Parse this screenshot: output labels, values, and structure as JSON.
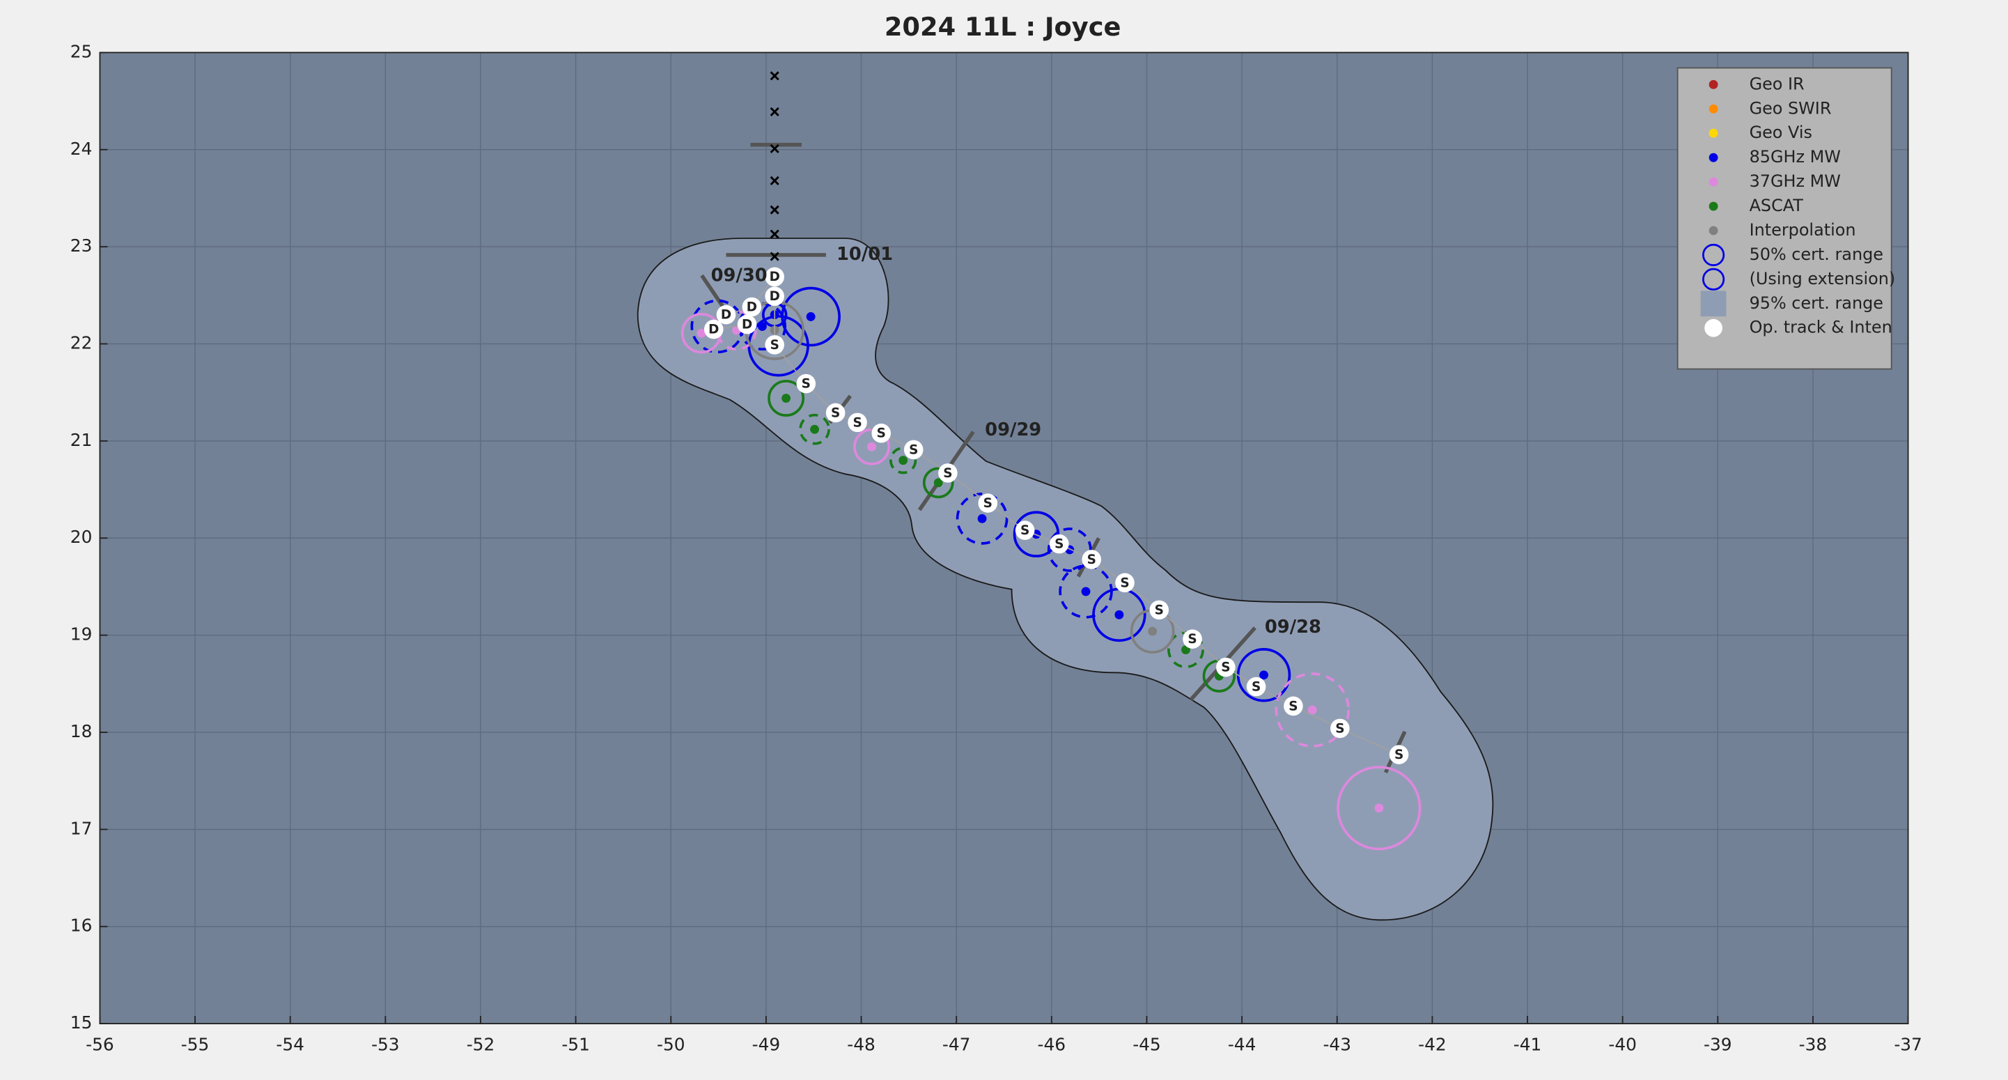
{
  "chart_data": {
    "type": "scatter",
    "title": "2024  11L :  Joyce",
    "xlim": [
      -56,
      -37
    ],
    "ylim": [
      15,
      25
    ],
    "xticks": [
      -56,
      -55,
      -54,
      -53,
      -52,
      -51,
      -50,
      -49,
      -48,
      -47,
      -46,
      -45,
      -44,
      -43,
      -42,
      -41,
      -40,
      -39,
      -38,
      -37
    ],
    "yticks": [
      15,
      16,
      17,
      18,
      19,
      20,
      21,
      22,
      23,
      24,
      25
    ],
    "grid": true,
    "legend": "upper right",
    "series": [
      {
        "name": "Geo IR",
        "color": "#b22222",
        "x": [],
        "y": [],
        "r": [],
        "dashed": []
      },
      {
        "name": "Geo SWIR",
        "color": "#ff8c00",
        "x": [],
        "y": [],
        "r": [],
        "dashed": []
      },
      {
        "name": "Geo Vis",
        "color": "#ffd700",
        "x": [],
        "y": [],
        "r": [],
        "dashed": []
      },
      {
        "name": "85GHz MW",
        "color": "#0000e6",
        "x": [
          -48.53,
          -48.87,
          -48.91,
          -49.04,
          -49.51,
          -46.73,
          -46.16,
          -45.81,
          -45.64,
          -45.29,
          -43.77
        ],
        "y": [
          22.28,
          21.98,
          22.3,
          22.18,
          22.18,
          20.2,
          20.04,
          19.88,
          19.45,
          19.21,
          18.59
        ],
        "r": [
          0.3,
          0.31,
          0.12,
          0.24,
          0.27,
          0.26,
          0.23,
          0.22,
          0.27,
          0.27,
          0.27
        ],
        "dashed": [
          false,
          false,
          false,
          true,
          true,
          true,
          false,
          true,
          true,
          false,
          false
        ]
      },
      {
        "name": "37GHz MW",
        "color": "#dd88dd",
        "x": [
          -42.56,
          -43.26,
          -47.89,
          -49.68,
          -49.31
        ],
        "y": [
          17.22,
          18.23,
          20.94,
          22.11,
          22.14
        ],
        "r": [
          0.43,
          0.38,
          0.18,
          0.2,
          0.2
        ],
        "dashed": [
          false,
          true,
          false,
          false,
          true
        ]
      },
      {
        "name": "ASCAT",
        "color": "#1a7a1a",
        "x": [
          -48.79,
          -48.49,
          -47.56,
          -47.19,
          -44.59,
          -44.24
        ],
        "y": [
          21.44,
          21.12,
          20.8,
          20.57,
          18.85,
          18.58
        ],
        "r": [
          0.18,
          0.15,
          0.13,
          0.15,
          0.18,
          0.16
        ],
        "dashed": [
          false,
          true,
          true,
          false,
          true,
          false
        ]
      },
      {
        "name": "Interpolation",
        "color": "#808080",
        "x": [
          -44.94,
          -48.91
        ],
        "y": [
          19.04,
          22.14
        ],
        "r": [
          0.22,
          0.3
        ],
        "dashed": [
          false,
          false
        ]
      }
    ],
    "legend_extra": [
      {
        "name": "50% cert. range",
        "color": "#0000e6",
        "marker": "ring"
      },
      {
        "name": "(Using extension)",
        "color": "#0000e6",
        "marker": "ring"
      },
      {
        "name": "95% cert. range",
        "color": "#8f9db4",
        "marker": "square"
      },
      {
        "name": "Op. track & Inten",
        "color": "#ffffff",
        "marker": "dot"
      }
    ],
    "op_track": {
      "x": [
        -42.35,
        -42.97,
        -43.46,
        -43.85,
        -44.17,
        -44.52,
        -44.87,
        -45.23,
        -45.58,
        -45.92,
        -46.28,
        -46.67,
        -47.09,
        -47.45,
        -47.79,
        -48.04,
        -48.27,
        -48.58,
        -48.91,
        -48.91,
        -48.91,
        -49.15,
        -49.42,
        -49.55,
        -49.2
      ],
      "y": [
        17.77,
        18.04,
        18.27,
        18.47,
        18.67,
        18.96,
        19.26,
        19.54,
        19.78,
        19.94,
        20.08,
        20.36,
        20.67,
        20.91,
        21.08,
        21.19,
        21.29,
        21.59,
        21.99,
        22.49,
        22.69,
        22.38,
        22.3,
        22.15,
        22.2
      ],
      "labels": [
        "S",
        "S",
        "S",
        "S",
        "S",
        "S",
        "S",
        "S",
        "S",
        "S",
        "S",
        "S",
        "S",
        "S",
        "S",
        "S",
        "S",
        "S",
        "S",
        "D",
        "D",
        "D",
        "D",
        "D",
        "D"
      ]
    },
    "forecast": {
      "x": [
        -48.91,
        -48.91,
        -48.91,
        -48.91,
        -48.91,
        -48.91,
        -48.91
      ],
      "y": [
        24.76,
        24.39,
        24.01,
        23.68,
        23.38,
        23.13,
        22.9
      ]
    },
    "annotations": [
      {
        "text": "09/30",
        "x": -49.58,
        "y": 22.7
      },
      {
        "text": "10/01",
        "x": -48.26,
        "y": 22.92
      },
      {
        "text": "09/29",
        "x": -46.7,
        "y": 21.11
      },
      {
        "text": "09/28",
        "x": -43.76,
        "y": 19.08
      }
    ]
  }
}
